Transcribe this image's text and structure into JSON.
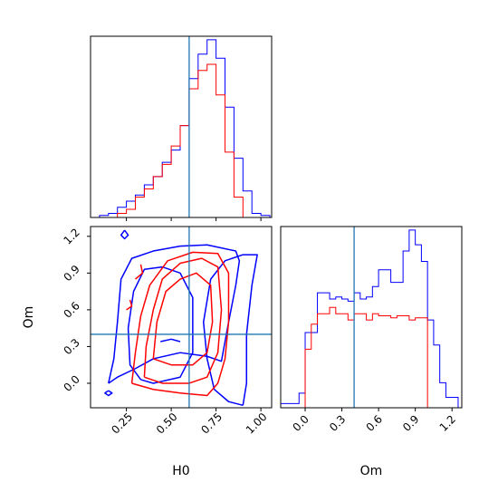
{
  "chart_data": {
    "type": "corner",
    "colors": {
      "blue": "#0000ff",
      "red": "#ff0000",
      "truth": "#1f77b4"
    },
    "parameters": [
      "H0",
      "Om"
    ],
    "truths": {
      "H0": 0.6,
      "Om": 0.4
    },
    "axes": {
      "h0_hist": {
        "xlim": [
          0.05,
          1.06
        ]
      },
      "joint": {
        "xlim": [
          0.05,
          1.06
        ],
        "ylim": [
          -0.2,
          1.28
        ],
        "xticks": [
          0.25,
          0.5,
          0.75,
          1.0
        ],
        "xtick_labels": [
          "0.25",
          "0.50",
          "0.75",
          "1.00"
        ],
        "yticks": [
          0.0,
          0.3,
          0.6,
          0.9,
          1.2
        ],
        "ytick_labels": [
          "0.0",
          "0.3",
          "0.6",
          "0.9",
          "1.2"
        ],
        "xlabel": "H0",
        "ylabel": "Om"
      },
      "om_hist": {
        "xlim": [
          -0.2,
          1.28
        ],
        "xticks": [
          0.0,
          0.3,
          0.6,
          0.9,
          1.2
        ],
        "xtick_labels": [
          "0.0",
          "0.3",
          "0.6",
          "0.9",
          "1.2"
        ],
        "xlabel": "Om"
      }
    },
    "series": [
      {
        "color": "blue",
        "h0_hist": {
          "edges": [
            0.1,
            0.15,
            0.2,
            0.25,
            0.3,
            0.35,
            0.4,
            0.45,
            0.5,
            0.55,
            0.6,
            0.65,
            0.7,
            0.75,
            0.8,
            0.85,
            0.9,
            0.95,
            1.0,
            1.05
          ],
          "values": [
            1,
            2,
            5,
            8,
            11,
            16,
            20,
            27,
            33,
            45,
            68,
            80,
            87,
            78,
            54,
            29,
            13,
            2,
            1
          ]
        },
        "om_hist": {
          "edges": [
            -0.2,
            -0.15,
            -0.1,
            -0.05,
            0.0,
            0.05,
            0.1,
            0.15,
            0.2,
            0.25,
            0.3,
            0.35,
            0.4,
            0.45,
            0.5,
            0.55,
            0.6,
            0.65,
            0.7,
            0.75,
            0.8,
            0.85,
            0.9,
            0.95,
            1.0,
            1.05,
            1.1,
            1.15,
            1.2,
            1.25
          ],
          "values": [
            2,
            2,
            2,
            7,
            36,
            36,
            55,
            55,
            52,
            53,
            52,
            51,
            55,
            52,
            53,
            58,
            66,
            66,
            60,
            60,
            75,
            85,
            78,
            70,
            42,
            30,
            12,
            5,
            5
          ]
        },
        "contours": [
          [
            [
              0.15,
              0.0
            ],
            [
              0.2,
              0.05
            ],
            [
              0.3,
              0.12
            ],
            [
              0.4,
              0.2
            ],
            [
              0.55,
              0.25
            ],
            [
              0.7,
              0.22
            ],
            [
              0.78,
              0.18
            ],
            [
              0.82,
              0.5
            ],
            [
              0.86,
              0.8
            ],
            [
              0.88,
              1.0
            ],
            [
              0.86,
              1.08
            ],
            [
              0.7,
              1.13
            ],
            [
              0.55,
              1.12
            ],
            [
              0.4,
              1.08
            ],
            [
              0.28,
              1.02
            ],
            [
              0.22,
              0.85
            ],
            [
              0.2,
              0.5
            ],
            [
              0.18,
              0.2
            ],
            [
              0.15,
              0.0
            ]
          ],
          [
            [
              0.9,
              -0.18
            ],
            [
              0.82,
              -0.15
            ],
            [
              0.74,
              -0.05
            ],
            [
              0.7,
              0.2
            ],
            [
              0.68,
              0.5
            ],
            [
              0.72,
              0.85
            ],
            [
              0.8,
              1.0
            ],
            [
              0.9,
              1.05
            ],
            [
              0.98,
              1.05
            ],
            [
              0.95,
              0.8
            ],
            [
              0.92,
              0.4
            ],
            [
              0.92,
              0.0
            ],
            [
              0.9,
              -0.18
            ]
          ],
          [
            [
              0.33,
              0.03
            ],
            [
              0.27,
              0.15
            ],
            [
              0.26,
              0.45
            ],
            [
              0.29,
              0.75
            ],
            [
              0.35,
              0.93
            ],
            [
              0.45,
              0.95
            ],
            [
              0.55,
              0.9
            ],
            [
              0.62,
              0.7
            ],
            [
              0.62,
              0.25
            ],
            [
              0.55,
              0.05
            ],
            [
              0.4,
              0.0
            ],
            [
              0.33,
              0.03
            ]
          ],
          [
            [
              0.24,
              1.25
            ],
            [
              0.22,
              1.21
            ],
            [
              0.24,
              1.18
            ],
            [
              0.26,
              1.21
            ],
            [
              0.24,
              1.25
            ]
          ],
          [
            [
              0.15,
              -0.06
            ],
            [
              0.13,
              -0.08
            ],
            [
              0.15,
              -0.1
            ],
            [
              0.17,
              -0.08
            ],
            [
              0.15,
              -0.06
            ]
          ],
          [
            [
              0.44,
              0.34
            ],
            [
              0.5,
              0.36
            ],
            [
              0.55,
              0.34
            ]
          ]
        ]
      },
      {
        "color": "red",
        "h0_hist": {
          "edges": [
            0.2,
            0.25,
            0.3,
            0.35,
            0.4,
            0.45,
            0.5,
            0.55,
            0.6,
            0.65,
            0.7,
            0.75,
            0.8,
            0.85,
            0.9
          ],
          "values": [
            2,
            4,
            10,
            14,
            20,
            26,
            35,
            45,
            63,
            72,
            75,
            60,
            32,
            10
          ]
        },
        "om_hist": {
          "edges": [
            0.0,
            0.05,
            0.1,
            0.15,
            0.2,
            0.25,
            0.3,
            0.35,
            0.4,
            0.45,
            0.5,
            0.55,
            0.6,
            0.65,
            0.7,
            0.75,
            0.8,
            0.85,
            0.9,
            0.95,
            1.0
          ],
          "values": [
            28,
            40,
            45,
            45,
            48,
            45,
            45,
            42,
            45,
            45,
            42,
            45,
            44,
            44,
            43,
            44,
            44,
            42,
            43,
            43
          ]
        },
        "contours": [
          [
            [
              0.28,
              0.0
            ],
            [
              0.3,
              0.25
            ],
            [
              0.33,
              0.55
            ],
            [
              0.38,
              0.8
            ],
            [
              0.48,
              1.0
            ],
            [
              0.62,
              1.07
            ],
            [
              0.76,
              1.06
            ],
            [
              0.82,
              0.9
            ],
            [
              0.82,
              0.5
            ],
            [
              0.8,
              0.2
            ],
            [
              0.76,
              0.0
            ],
            [
              0.7,
              -0.1
            ],
            [
              0.55,
              -0.08
            ],
            [
              0.4,
              -0.05
            ],
            [
              0.28,
              0.0
            ]
          ],
          [
            [
              0.35,
              0.05
            ],
            [
              0.36,
              0.3
            ],
            [
              0.4,
              0.6
            ],
            [
              0.45,
              0.85
            ],
            [
              0.55,
              0.98
            ],
            [
              0.67,
              1.02
            ],
            [
              0.76,
              0.95
            ],
            [
              0.78,
              0.6
            ],
            [
              0.76,
              0.25
            ],
            [
              0.7,
              0.05
            ],
            [
              0.6,
              0.0
            ],
            [
              0.45,
              0.0
            ],
            [
              0.35,
              0.05
            ]
          ],
          [
            [
              0.4,
              0.2
            ],
            [
              0.42,
              0.5
            ],
            [
              0.47,
              0.75
            ],
            [
              0.55,
              0.85
            ],
            [
              0.64,
              0.9
            ],
            [
              0.72,
              0.8
            ],
            [
              0.73,
              0.5
            ],
            [
              0.7,
              0.25
            ],
            [
              0.62,
              0.15
            ],
            [
              0.5,
              0.15
            ],
            [
              0.4,
              0.2
            ]
          ],
          [
            [
              0.3,
              0.85
            ],
            [
              0.34,
              0.9
            ],
            [
              0.33,
              0.97
            ]
          ],
          [
            [
              0.25,
              0.6
            ],
            [
              0.28,
              0.63
            ],
            [
              0.27,
              0.68
            ]
          ]
        ]
      }
    ]
  }
}
